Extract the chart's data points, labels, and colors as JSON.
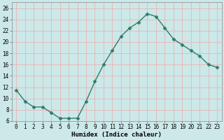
{
  "x": [
    0,
    1,
    2,
    3,
    4,
    5,
    6,
    7,
    8,
    9,
    10,
    11,
    12,
    13,
    14,
    15,
    16,
    17,
    18,
    19,
    20,
    21,
    22,
    23
  ],
  "y": [
    11.5,
    9.5,
    8.5,
    8.5,
    7.5,
    6.5,
    6.5,
    6.5,
    9.5,
    13.0,
    16.0,
    18.5,
    21.0,
    22.5,
    23.5,
    25.0,
    24.5,
    22.5,
    20.5,
    19.5,
    18.5,
    17.5,
    16.0,
    15.5
  ],
  "line_color": "#2e7d6e",
  "marker": "D",
  "markersize": 2.5,
  "bg_color": "#cce8e8",
  "grid_major_color": "#e8b4b4",
  "grid_minor_color": "#dde8e8",
  "xlabel": "Humidex (Indice chaleur)",
  "ylim": [
    6,
    27
  ],
  "xlim": [
    -0.5,
    23.5
  ],
  "yticks": [
    6,
    8,
    10,
    12,
    14,
    16,
    18,
    20,
    22,
    24,
    26
  ],
  "xticks": [
    0,
    1,
    2,
    3,
    4,
    5,
    6,
    7,
    8,
    9,
    10,
    11,
    12,
    13,
    14,
    15,
    16,
    17,
    18,
    19,
    20,
    21,
    22,
    23
  ],
  "xlabel_fontsize": 6.5,
  "tick_fontsize": 5.5,
  "linewidth": 1.0
}
